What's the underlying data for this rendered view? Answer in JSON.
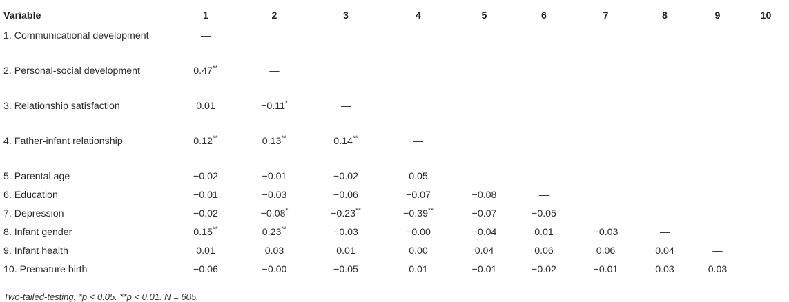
{
  "table": {
    "columns": [
      "Variable",
      "1",
      "2",
      "3",
      "4",
      "5",
      "6",
      "7",
      "8",
      "9",
      "10"
    ],
    "rows": [
      {
        "label": "1. Communicational development",
        "values": [
          "—"
        ]
      },
      {
        "label": "2. Personal-social development",
        "values": [
          "0.47**",
          "—"
        ]
      },
      {
        "label": "3. Relationship satisfaction",
        "values": [
          "0.01",
          "−0.11*",
          "—"
        ]
      },
      {
        "label": "4. Father-infant relationship",
        "values": [
          "0.12**",
          "0.13**",
          "0.14**",
          "—"
        ]
      },
      {
        "label": "5. Parental age",
        "values": [
          "−0.02",
          "−0.01",
          "−0.02",
          "0.05",
          "—"
        ]
      },
      {
        "label": "6. Education",
        "values": [
          "−0.01",
          "−0.03",
          "−0.06",
          "−0.07",
          "−0.08",
          "—"
        ]
      },
      {
        "label": "7. Depression",
        "values": [
          "−0.02",
          "−0.08*",
          "−0.23**",
          "−0.39**",
          "−0.07",
          "−0.05",
          "—"
        ]
      },
      {
        "label": "8. Infant gender",
        "values": [
          "0.15**",
          "0.23**",
          "−0.03",
          "−0.00",
          "−0.04",
          "0.01",
          "−0.03",
          "—"
        ]
      },
      {
        "label": "9. Infant health",
        "values": [
          "0.01",
          "0.03",
          "0.01",
          "0.00",
          "0.04",
          "0.06",
          "0.06",
          "0.04",
          "—"
        ]
      },
      {
        "label": "10. Premature birth",
        "values": [
          "−0.06",
          "−0.00",
          "−0.05",
          "0.01",
          "−0.01",
          "−0.02",
          "−0.01",
          "0.03",
          "0.03",
          "—"
        ]
      }
    ]
  },
  "footnote": "Two-tailed-testing. *p < 0.05. **p < 0.01. N = 605."
}
